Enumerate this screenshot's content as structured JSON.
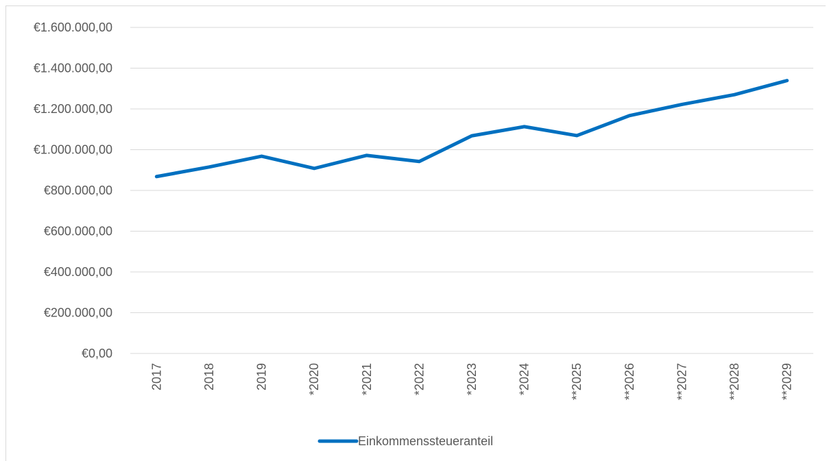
{
  "chart_data": {
    "type": "line",
    "title": "",
    "xlabel": "",
    "ylabel": "",
    "categories": [
      "2017",
      "2018",
      "2019",
      "*2020",
      "*2021",
      "*2022",
      "*2023",
      "*2024",
      "**2025",
      "**2026",
      "**2027",
      "**2028",
      "**2029"
    ],
    "series": [
      {
        "name": "Einkommenssteueranteil",
        "color": "#0070c0",
        "values": [
          868000,
          915000,
          968000,
          908000,
          972000,
          942000,
          1068000,
          1113000,
          1069000,
          1167000,
          1222000,
          1270000,
          1339000
        ]
      }
    ],
    "ylim": [
      0,
      1600000
    ],
    "yticks": [
      0,
      200000,
      400000,
      600000,
      800000,
      1000000,
      1200000,
      1400000,
      1600000
    ],
    "ytick_labels": [
      "€0,00",
      "€200.000,00",
      "€400.000,00",
      "€600.000,00",
      "€800.000,00",
      "€1.000.000,00",
      "€1.200.000,00",
      "€1.400.000,00",
      "€1.600.000,00"
    ],
    "grid": true,
    "legend": "bottom",
    "colors": {
      "gridline": "#d9d9d9",
      "axis_text": "#595959"
    }
  }
}
